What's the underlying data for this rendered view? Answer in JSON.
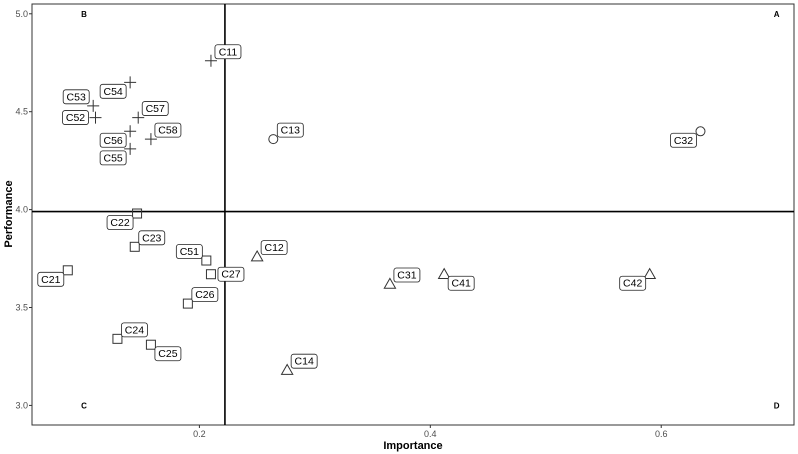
{
  "chart_data": {
    "type": "scatter",
    "title": "",
    "xlabel": "Importance",
    "ylabel": "Performance",
    "xlim": [
      0.055,
      0.715
    ],
    "ylim": [
      2.9,
      5.05
    ],
    "x_ticks": [
      0.2,
      0.4,
      0.6
    ],
    "x_tick_labels": [
      "0.2",
      "0.4",
      "0.6"
    ],
    "y_ticks": [
      3.0,
      3.5,
      4.0,
      4.5,
      5.0
    ],
    "y_tick_labels": [
      "3.0",
      "3.5",
      "4.0",
      "4.5",
      "5.0"
    ],
    "grid": false,
    "reference_lines": {
      "x": 0.2221,
      "y": 3.99
    },
    "quadrant_labels": [
      {
        "text": "B",
        "x": 0.1,
        "y": 5.0
      },
      {
        "text": "A",
        "x": 0.7,
        "y": 5.0
      },
      {
        "text": "C",
        "x": 0.1,
        "y": 3.0
      },
      {
        "text": "D",
        "x": 0.7,
        "y": 3.0
      }
    ],
    "groups": [
      {
        "shape": "circle",
        "points": [
          {
            "label": "C13",
            "x": 0.264,
            "y": 4.36,
            "label_pos": "right-up"
          },
          {
            "label": "C32",
            "x": 0.634,
            "y": 4.4,
            "label_pos": "left-down"
          }
        ]
      },
      {
        "shape": "triangle",
        "points": [
          {
            "label": "C12",
            "x": 0.25,
            "y": 3.76,
            "label_pos": "right-up"
          },
          {
            "label": "C14",
            "x": 0.276,
            "y": 3.18,
            "label_pos": "right-up"
          },
          {
            "label": "C31",
            "x": 0.365,
            "y": 3.62,
            "label_pos": "right-up"
          },
          {
            "label": "C41",
            "x": 0.412,
            "y": 3.67,
            "label_pos": "right-down"
          },
          {
            "label": "C42",
            "x": 0.59,
            "y": 3.67,
            "label_pos": "left-down"
          }
        ]
      },
      {
        "shape": "square",
        "points": [
          {
            "label": "C21",
            "x": 0.086,
            "y": 3.69,
            "label_pos": "left-down"
          },
          {
            "label": "C22",
            "x": 0.146,
            "y": 3.98,
            "label_pos": "left-down"
          },
          {
            "label": "C23",
            "x": 0.144,
            "y": 3.81,
            "label_pos": "right-up"
          },
          {
            "label": "C24",
            "x": 0.129,
            "y": 3.34,
            "label_pos": "right-up"
          },
          {
            "label": "C25",
            "x": 0.158,
            "y": 3.31,
            "label_pos": "right-down"
          },
          {
            "label": "C26",
            "x": 0.19,
            "y": 3.52,
            "label_pos": "right-up"
          },
          {
            "label": "C27",
            "x": 0.21,
            "y": 3.67,
            "label_pos": "right"
          },
          {
            "label": "C51",
            "x": 0.206,
            "y": 3.74,
            "label_pos": "left-up"
          }
        ]
      },
      {
        "shape": "plus",
        "points": [
          {
            "label": "C11",
            "x": 0.21,
            "y": 4.76,
            "label_pos": "right-up"
          },
          {
            "label": "C52",
            "x": 0.11,
            "y": 4.47,
            "label_pos": "left"
          },
          {
            "label": "C53",
            "x": 0.108,
            "y": 4.53,
            "label_pos": "left-up"
          },
          {
            "label": "C54",
            "x": 0.14,
            "y": 4.65,
            "label_pos": "left-down"
          },
          {
            "label": "C55",
            "x": 0.14,
            "y": 4.31,
            "label_pos": "left-down"
          },
          {
            "label": "C56",
            "x": 0.14,
            "y": 4.4,
            "label_pos": "left-down"
          },
          {
            "label": "C57",
            "x": 0.147,
            "y": 4.47,
            "label_pos": "right-up"
          },
          {
            "label": "C58",
            "x": 0.158,
            "y": 4.36,
            "label_pos": "right-up"
          }
        ]
      }
    ]
  }
}
